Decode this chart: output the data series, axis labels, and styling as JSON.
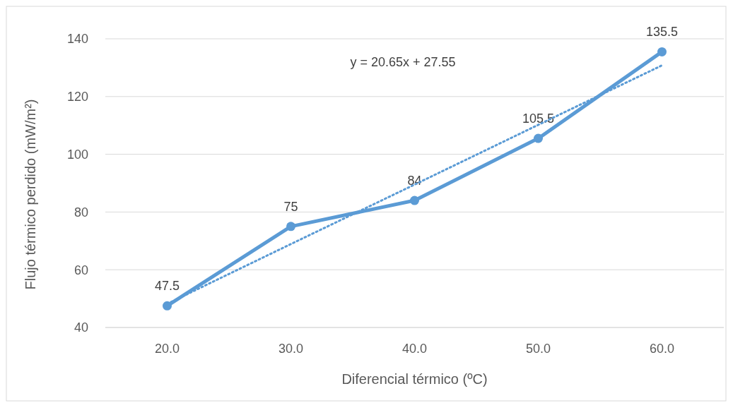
{
  "chart_data": {
    "type": "line",
    "xlabel": "Diferencial térmico (ºC)",
    "ylabel": "Flujo térmico perdido (mW/m²)",
    "categories": [
      "20.0",
      "30.0",
      "40.0",
      "50.0",
      "60.0"
    ],
    "series": [
      {
        "color": "#5b9bd5",
        "values": [
          47.5,
          75,
          84,
          105.5,
          135.5
        ],
        "value_labels": [
          "47.5",
          "75",
          "84",
          "105.5",
          "135.5"
        ],
        "marker": "circle",
        "line_style": "solid"
      },
      {
        "color": "#5b9bd5",
        "values": [
          48.2,
          68.9,
          89.5,
          110.2,
          130.8
        ],
        "marker": "none",
        "line_style": "dotted"
      }
    ],
    "annotations": [
      "y = 20.65x + 27.55"
    ],
    "ylim": [
      40,
      140
    ],
    "yticks": [
      40,
      60,
      80,
      100,
      120,
      140
    ],
    "grid": "y"
  }
}
